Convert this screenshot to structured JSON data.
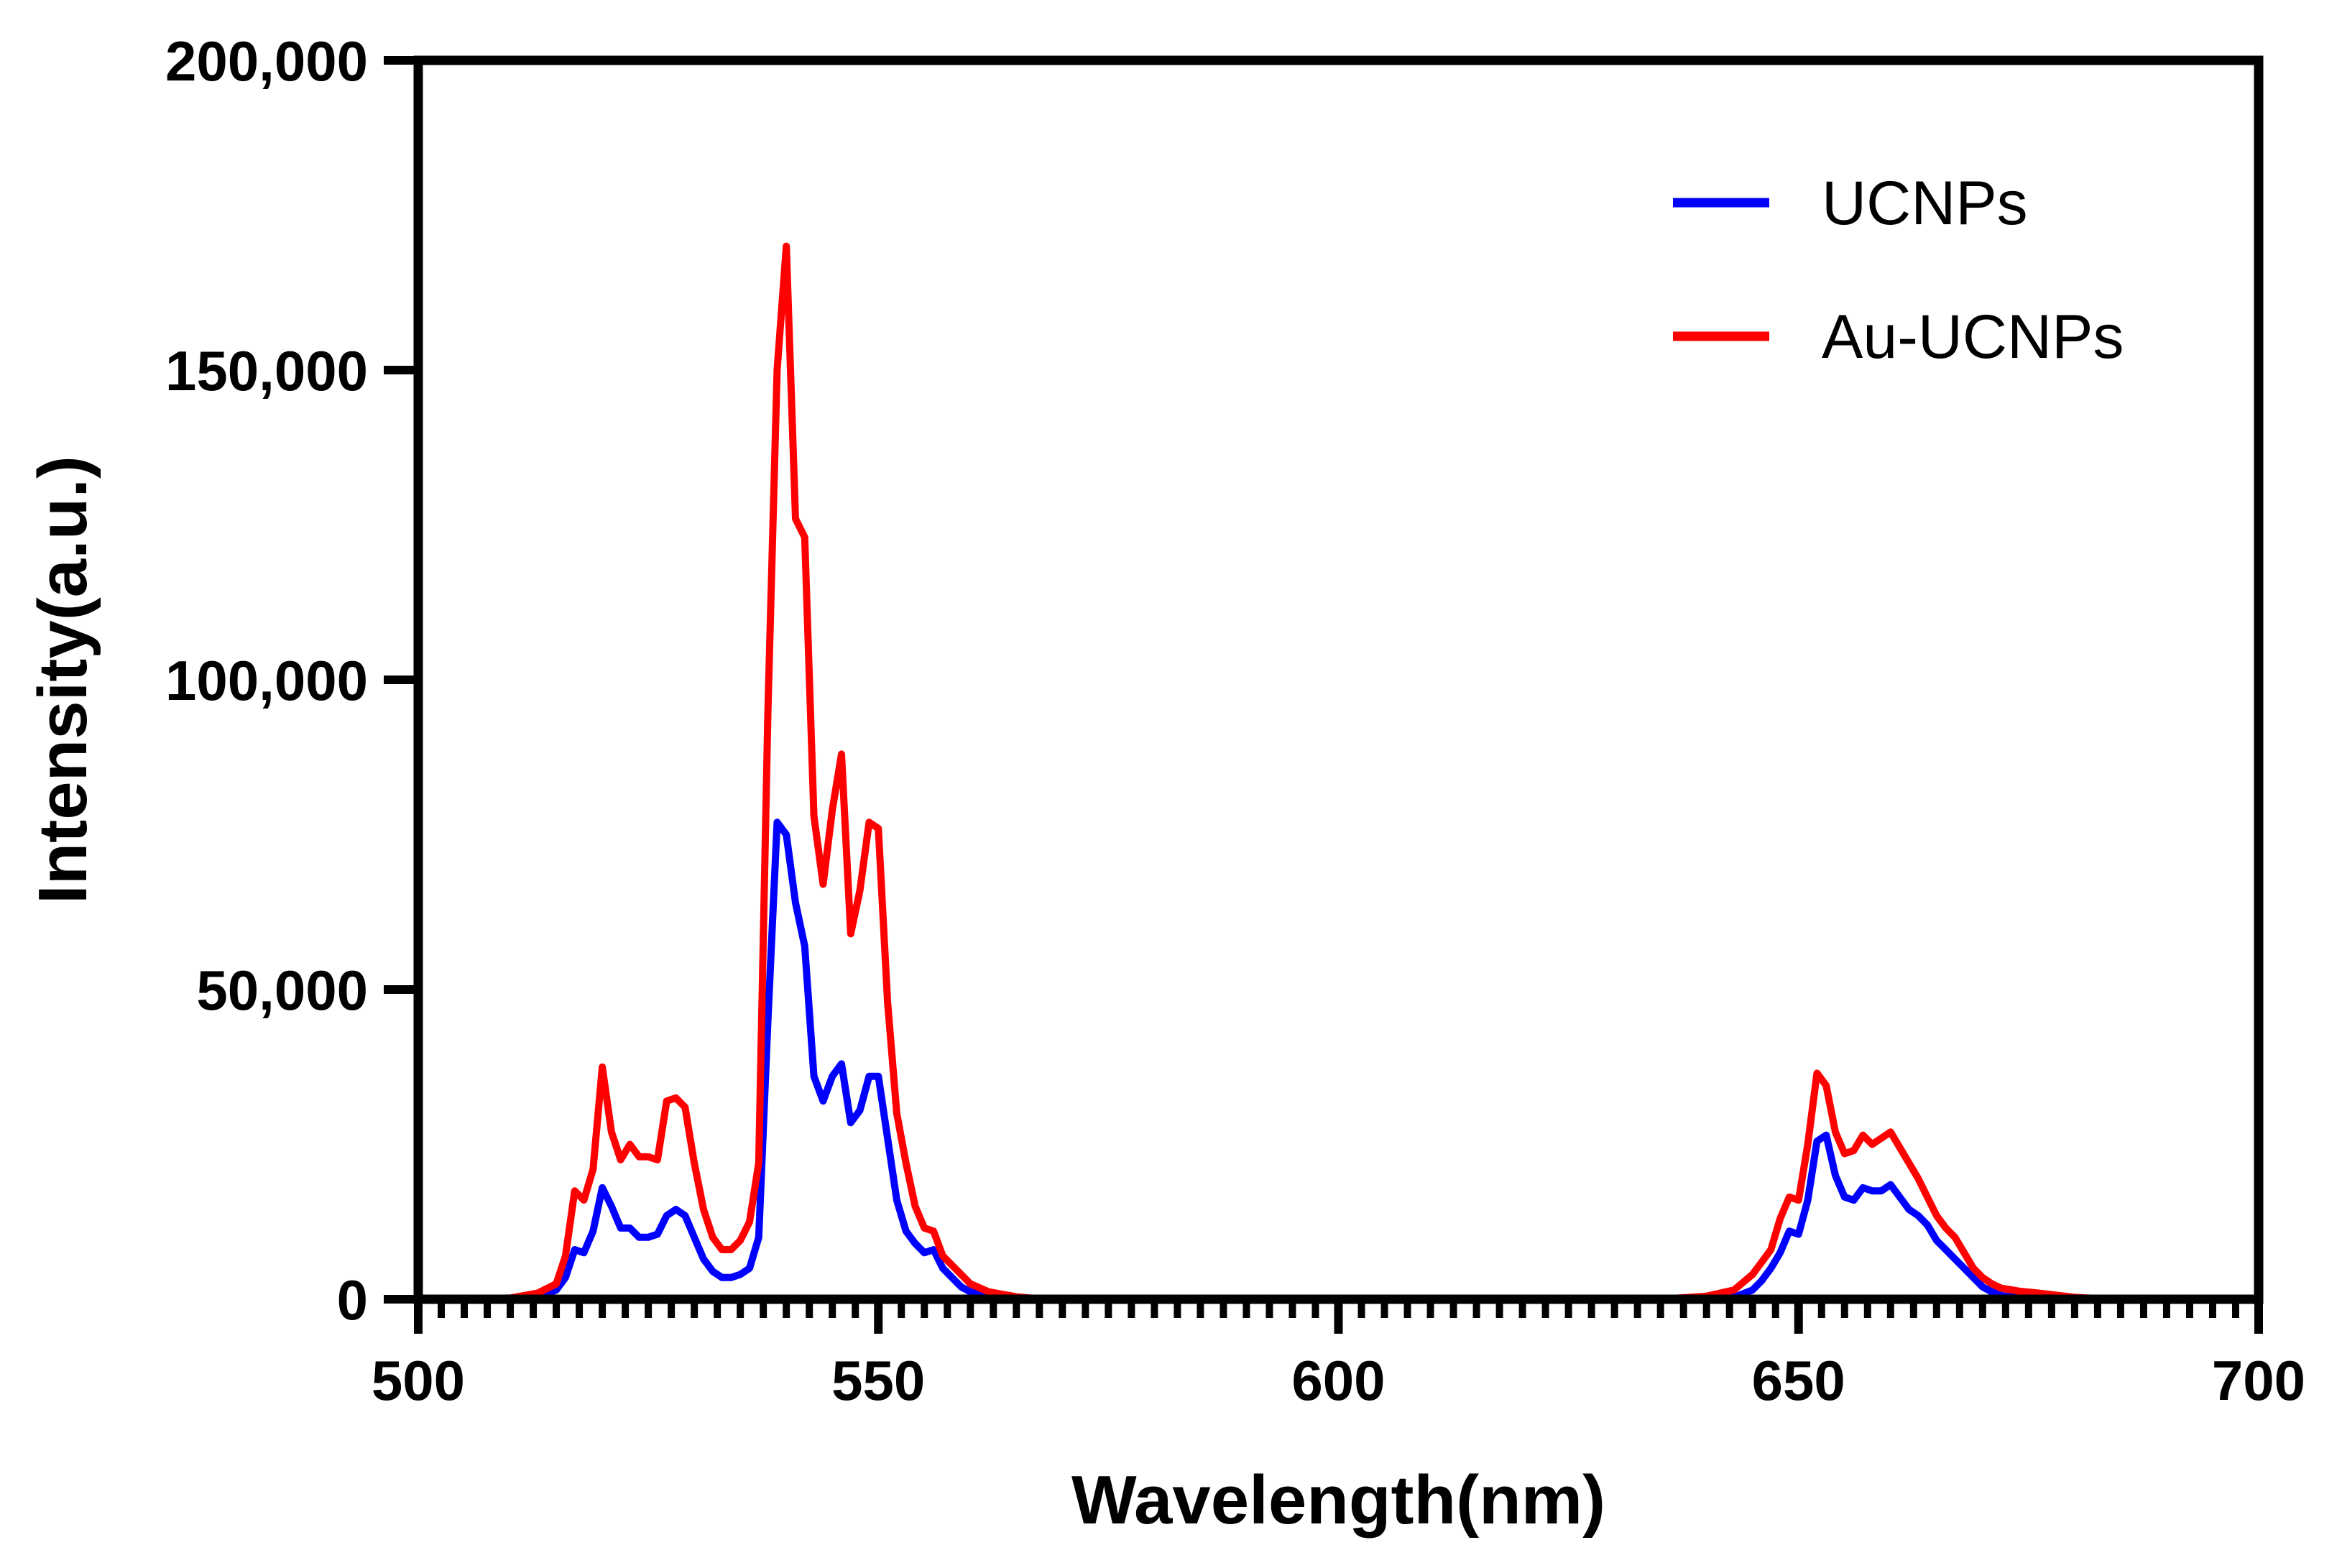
{
  "chart_data": {
    "type": "line",
    "xlabel": "Wavelength(nm)",
    "ylabel": "Intensity(a.u.)",
    "xlim": [
      500,
      700
    ],
    "ylim": [
      0,
      200000
    ],
    "x_ticks": [
      500,
      550,
      600,
      650,
      700
    ],
    "x_tick_labels": [
      "500",
      "550",
      "600",
      "650",
      "700"
    ],
    "x_minor_step": 2.5,
    "y_ticks": [
      0,
      50000,
      100000,
      150000,
      200000
    ],
    "y_tick_labels": [
      "0",
      "50,000",
      "100,000",
      "150,000",
      "200,000"
    ],
    "grid": false,
    "legend_position": "top-right",
    "series": [
      {
        "name": "UCNPs",
        "color": "#0000ff",
        "points": [
          [
            500,
            0
          ],
          [
            505,
            0
          ],
          [
            510,
            0
          ],
          [
            513,
            300
          ],
          [
            515,
            1500
          ],
          [
            516,
            3500
          ],
          [
            517,
            8000
          ],
          [
            518,
            7500
          ],
          [
            519,
            11000
          ],
          [
            520,
            18000
          ],
          [
            521,
            15000
          ],
          [
            522,
            11500
          ],
          [
            523,
            11500
          ],
          [
            524,
            10000
          ],
          [
            525,
            10000
          ],
          [
            526,
            10500
          ],
          [
            527,
            13500
          ],
          [
            528,
            14500
          ],
          [
            529,
            13500
          ],
          [
            530,
            10000
          ],
          [
            531,
            6500
          ],
          [
            532,
            4500
          ],
          [
            533,
            3500
          ],
          [
            534,
            3500
          ],
          [
            535,
            4000
          ],
          [
            536,
            5000
          ],
          [
            537,
            10000
          ],
          [
            538,
            45000
          ],
          [
            539,
            77000
          ],
          [
            540,
            75000
          ],
          [
            541,
            64000
          ],
          [
            542,
            57000
          ],
          [
            543,
            36000
          ],
          [
            544,
            32000
          ],
          [
            545,
            36000
          ],
          [
            546,
            38000
          ],
          [
            547,
            28500
          ],
          [
            548,
            30500
          ],
          [
            549,
            36000
          ],
          [
            550,
            36000
          ],
          [
            551,
            26000
          ],
          [
            552,
            16000
          ],
          [
            553,
            11000
          ],
          [
            554,
            9000
          ],
          [
            555,
            7500
          ],
          [
            556,
            8000
          ],
          [
            557,
            5000
          ],
          [
            558,
            3500
          ],
          [
            559,
            2000
          ],
          [
            560,
            1200
          ],
          [
            562,
            500
          ],
          [
            565,
            100
          ],
          [
            570,
            0
          ],
          [
            600,
            0
          ],
          [
            640,
            0
          ],
          [
            643,
            300
          ],
          [
            645,
            1500
          ],
          [
            646,
            3000
          ],
          [
            647,
            5000
          ],
          [
            648,
            7500
          ],
          [
            649,
            11000
          ],
          [
            650,
            10500
          ],
          [
            651,
            16000
          ],
          [
            652,
            25500
          ],
          [
            653,
            26500
          ],
          [
            654,
            20000
          ],
          [
            655,
            16500
          ],
          [
            656,
            16000
          ],
          [
            657,
            18000
          ],
          [
            658,
            17500
          ],
          [
            659,
            17500
          ],
          [
            660,
            18500
          ],
          [
            661,
            16500
          ],
          [
            662,
            14500
          ],
          [
            663,
            13500
          ],
          [
            664,
            12000
          ],
          [
            665,
            9500
          ],
          [
            666,
            8000
          ],
          [
            667,
            6500
          ],
          [
            668,
            5000
          ],
          [
            669,
            3500
          ],
          [
            670,
            2000
          ],
          [
            671,
            1200
          ],
          [
            672,
            600
          ],
          [
            674,
            200
          ],
          [
            676,
            0
          ],
          [
            700,
            0
          ]
        ]
      },
      {
        "name": "Au-UCNPs",
        "color": "#ff0000",
        "points": [
          [
            500,
            0
          ],
          [
            505,
            0
          ],
          [
            510,
            200
          ],
          [
            513,
            1000
          ],
          [
            515,
            2500
          ],
          [
            516,
            7000
          ],
          [
            517,
            17500
          ],
          [
            518,
            16000
          ],
          [
            519,
            21000
          ],
          [
            520,
            37500
          ],
          [
            521,
            27000
          ],
          [
            522,
            22500
          ],
          [
            523,
            25000
          ],
          [
            524,
            23000
          ],
          [
            525,
            23000
          ],
          [
            526,
            22500
          ],
          [
            527,
            32000
          ],
          [
            528,
            32500
          ],
          [
            529,
            31000
          ],
          [
            530,
            22000
          ],
          [
            531,
            14500
          ],
          [
            532,
            10000
          ],
          [
            533,
            8000
          ],
          [
            534,
            8000
          ],
          [
            535,
            9500
          ],
          [
            536,
            12500
          ],
          [
            537,
            22000
          ],
          [
            538,
            95000
          ],
          [
            539,
            150000
          ],
          [
            540,
            170000
          ],
          [
            541,
            126000
          ],
          [
            542,
            123000
          ],
          [
            543,
            78000
          ],
          [
            544,
            67000
          ],
          [
            545,
            79000
          ],
          [
            546,
            88000
          ],
          [
            547,
            59000
          ],
          [
            548,
            66000
          ],
          [
            549,
            77000
          ],
          [
            550,
            76000
          ],
          [
            551,
            48000
          ],
          [
            552,
            30000
          ],
          [
            553,
            22000
          ],
          [
            554,
            15000
          ],
          [
            555,
            11500
          ],
          [
            556,
            11000
          ],
          [
            557,
            7000
          ],
          [
            558,
            5500
          ],
          [
            559,
            4000
          ],
          [
            560,
            2500
          ],
          [
            562,
            1200
          ],
          [
            565,
            400
          ],
          [
            568,
            0
          ],
          [
            600,
            0
          ],
          [
            635,
            0
          ],
          [
            640,
            500
          ],
          [
            643,
            1500
          ],
          [
            645,
            4000
          ],
          [
            646,
            6000
          ],
          [
            647,
            8000
          ],
          [
            648,
            13000
          ],
          [
            649,
            16500
          ],
          [
            650,
            16000
          ],
          [
            651,
            25000
          ],
          [
            652,
            36500
          ],
          [
            653,
            34500
          ],
          [
            654,
            27000
          ],
          [
            655,
            23500
          ],
          [
            656,
            24000
          ],
          [
            657,
            26500
          ],
          [
            658,
            25000
          ],
          [
            659,
            26000
          ],
          [
            660,
            27000
          ],
          [
            661,
            24500
          ],
          [
            662,
            22000
          ],
          [
            663,
            19500
          ],
          [
            664,
            16500
          ],
          [
            665,
            13500
          ],
          [
            666,
            11500
          ],
          [
            667,
            10000
          ],
          [
            668,
            7500
          ],
          [
            669,
            5000
          ],
          [
            670,
            3500
          ],
          [
            671,
            2500
          ],
          [
            672,
            1800
          ],
          [
            674,
            1300
          ],
          [
            676,
            1000
          ],
          [
            680,
            300
          ],
          [
            684,
            0
          ],
          [
            700,
            0
          ]
        ]
      }
    ]
  }
}
